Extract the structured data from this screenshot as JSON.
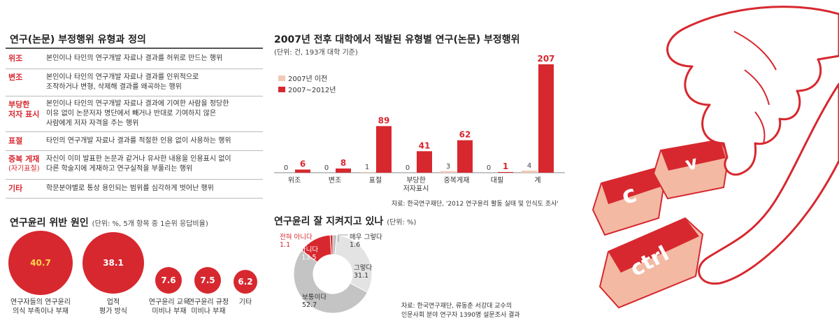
{
  "definitions": {
    "title": "연구(논문) 부정행위 유형과 정의",
    "rows": [
      {
        "term": "위조",
        "term2": "",
        "desc": "본인이나 타인의 연구개발 자료나 결과를 허위로 만드는 행위",
        "desc2": "",
        "desc3": ""
      },
      {
        "term": "변조",
        "term2": "",
        "desc": "본인이나 타인의 연구개발 자료나 결과를 인위적으로",
        "desc2": "조작하거나 변형, 삭제해 결과를 왜곡하는 행위",
        "desc3": ""
      },
      {
        "term": "부당한",
        "term2": "저자 표시",
        "desc": "본인이나 타인의 연구개발 자료나 결과에 기여한 사람을 정당한",
        "desc2": "이유 없이 논문저자 명단에서 빼거나 반대로 기여하지 않은",
        "desc3": "사람에게 저자 자격을 주는 행위"
      },
      {
        "term": "표절",
        "term2": "",
        "desc": "타인의 연구개발 자료나 결과를 적절한 인용 없이 사용하는 행위",
        "desc2": "",
        "desc3": ""
      },
      {
        "term": "중복 게재",
        "term2": "(자기표절)",
        "desc": "자신이 이미 발표한 논문과 같거나 유사한 내용을 인용표시 없이",
        "desc2": "다른 학술지에 게재하고 연구실적을 부풀리는 행위",
        "desc3": ""
      },
      {
        "term": "기타",
        "term2": "",
        "desc": "학문분야별로 통상 용인되는 범위를 심각하게 벗어난 행위",
        "desc2": "",
        "desc3": ""
      }
    ]
  },
  "causes": {
    "title": "연구윤리 위반 원인",
    "subtitle": "(단위: %, 5개 항목 중 1순위 응답비율)",
    "items": [
      {
        "value": "40.7",
        "label1": "연구자들의 연구윤리",
        "label2": "의식 부족이나 부재"
      },
      {
        "value": "38.1",
        "label1": "업적",
        "label2": "평가 방식"
      },
      {
        "value": "7.6",
        "label1": "연구윤리 교육",
        "label2": "미비나 부재"
      },
      {
        "value": "7.5",
        "label1": "연구윤리 규정",
        "label2": "미비나 부재"
      },
      {
        "value": "6.2",
        "label1": "기타",
        "label2": ""
      }
    ]
  },
  "bar_section": {
    "title": "2007년 전후 대학에서 적발된 유형별 연구(논문) 부정행위",
    "unit": "(단위: 건, 193개 대학 기준)",
    "source": "자료: 한국연구재단, '2012 연구윤리 활동 실태 및 인식도 조사'",
    "colors": {
      "before": "#f2c9b6",
      "after": "#d7282f"
    }
  },
  "donut_section": {
    "title": "연구윤리 잘 지켜지고 있나",
    "unit": "(단위: %)",
    "source1": "자료: 한국연구재단, 류동춘 서강대 교수의",
    "source2": "인문사회 분야 연구자 1390명 설문조사 결과",
    "colors": [
      "#cccccc",
      "#e6e6e6",
      "#d7282f",
      "#d7282f",
      "#f0a0a0"
    ]
  },
  "illustration": {
    "key1": "ctrl",
    "key2": "c",
    "key3": "v",
    "colors": {
      "outline": "#d7282f",
      "key_face": "#d7282f",
      "key_side": "#f3b9a3"
    }
  },
  "chart_data": [
    {
      "type": "bar",
      "title": "2007년 전후 대학에서 적발된 유형별 연구(논문) 부정행위",
      "unit": "(단위: 건, 193개 대학 기준)",
      "categories": [
        "위조",
        "변조",
        "표절",
        "부당한 저자표시",
        "중복게재",
        "대필",
        "계"
      ],
      "series": [
        {
          "name": "2007년 이전",
          "values": [
            0,
            0,
            1,
            0,
            3,
            0,
            4
          ]
        },
        {
          "name": "2007~2012년",
          "values": [
            6,
            8,
            89,
            41,
            62,
            1,
            207
          ]
        }
      ],
      "legend": "top-left"
    },
    {
      "type": "pie",
      "title": "연구윤리 잘 지켜지고 있나",
      "unit": "(단위: %)",
      "labels": [
        "매우 그렇다",
        "그렇다",
        "보통이다",
        "아니다",
        "전혀 아니다"
      ],
      "values": [
        1.6,
        31.1,
        52.7,
        13.5,
        1.1
      ]
    }
  ]
}
